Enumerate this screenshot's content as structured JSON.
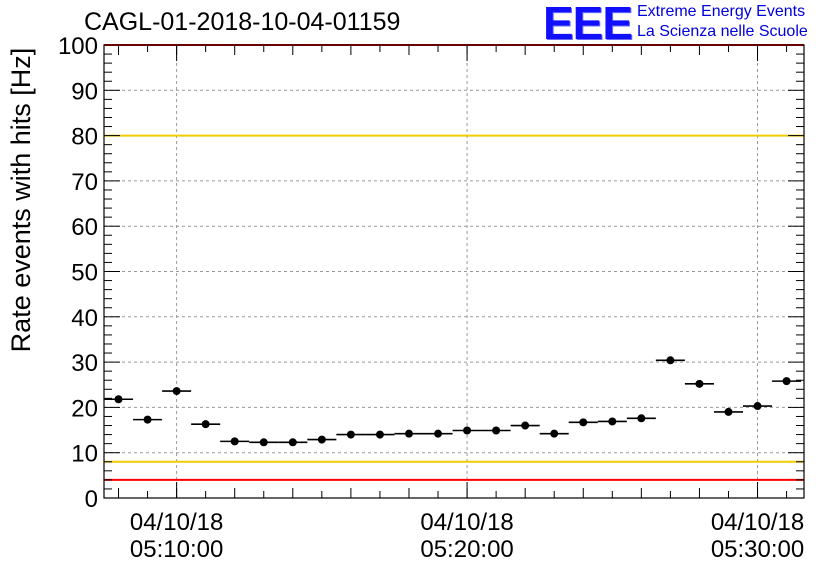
{
  "brand": {
    "mark": "EEE",
    "line1": "Extreme Energy Events",
    "line2": "La Scienza nelle Scuole"
  },
  "colors": {
    "limit_outer": "#ff0000",
    "limit_inner": "#f2cc00",
    "points": "#000000",
    "grid": "#999999",
    "logo": "#0000dd"
  },
  "chart_data": {
    "type": "scatter",
    "title": "CAGL-01-2018-10-04-01159",
    "ylabel": "Rate events with hits [Hz]",
    "xlabel": "",
    "ylim": [
      0,
      100
    ],
    "y_ticks": [
      0,
      10,
      20,
      30,
      40,
      50,
      60,
      70,
      80,
      90,
      100
    ],
    "x_ticks": [
      {
        "date": "04/10/18",
        "time": "05:10:00"
      },
      {
        "date": "04/10/18",
        "time": "05:20:00"
      },
      {
        "date": "04/10/18",
        "time": "05:30:00"
      }
    ],
    "grid": true,
    "marker_style": "point with horizontal bin-width bar",
    "reference_lines": [
      {
        "y": 100,
        "color": "red"
      },
      {
        "y": 80,
        "color": "yellow"
      },
      {
        "y": 8,
        "color": "yellow"
      },
      {
        "y": 4,
        "color": "red"
      }
    ],
    "x": [
      "05:08:00",
      "05:09:00",
      "05:10:00",
      "05:11:00",
      "05:12:00",
      "05:13:00",
      "05:14:00",
      "05:15:00",
      "05:16:00",
      "05:17:00",
      "05:18:00",
      "05:19:00",
      "05:20:00",
      "05:21:00",
      "05:22:00",
      "05:23:00",
      "05:24:00",
      "05:25:00",
      "05:26:00",
      "05:27:00",
      "05:28:00",
      "05:29:00",
      "05:30:00",
      "05:31:00"
    ],
    "values": [
      21.8,
      17.3,
      23.6,
      16.3,
      12.5,
      12.3,
      12.3,
      12.9,
      14.0,
      14.0,
      14.2,
      14.2,
      14.9,
      14.9,
      16.0,
      14.2,
      16.7,
      16.9,
      17.6,
      30.4,
      25.2,
      19.0,
      20.3,
      25.8
    ]
  }
}
